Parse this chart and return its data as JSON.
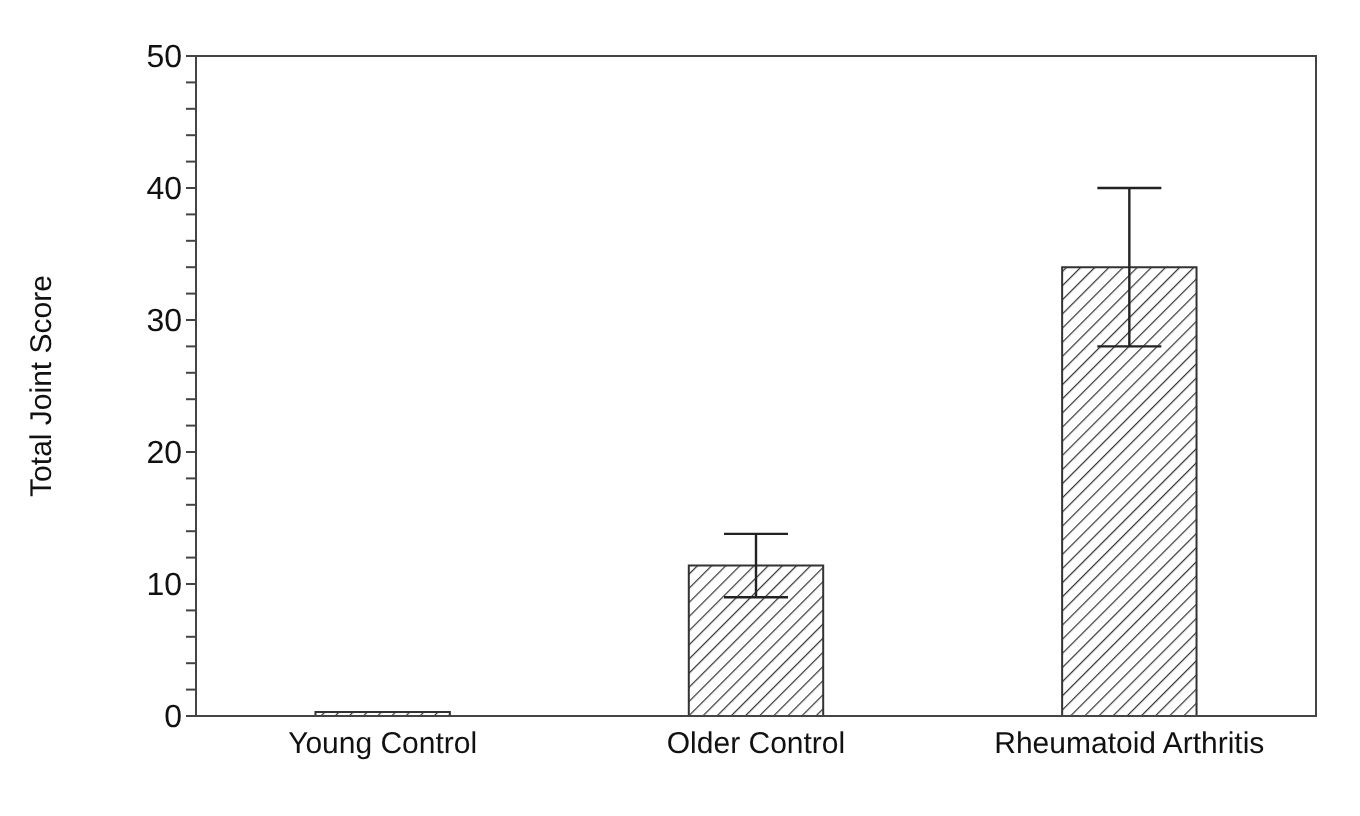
{
  "chart_data": {
    "type": "bar",
    "ylabel": "Total Joint Score",
    "categories": [
      "Young Control",
      "Older Control",
      "Rheumatoid Arthritis"
    ],
    "values": [
      0.3,
      11.4,
      34
    ],
    "errors": [
      null,
      [
        9,
        13.8
      ],
      [
        28,
        40
      ]
    ],
    "color": "#333333",
    "ylim": [
      0,
      50
    ],
    "yticks": [
      0,
      {
        "value": 2,
        "label": null
      },
      {
        "value": 4,
        "label": null
      },
      {
        "value": 6,
        "label": null
      },
      {
        "value": 8,
        "label": null
      },
      10,
      {
        "value": 12,
        "label": null
      },
      {
        "value": 14,
        "label": null
      },
      {
        "value": 16,
        "label": null
      },
      {
        "value": 18,
        "label": null
      },
      20,
      {
        "value": 22,
        "label": null
      },
      {
        "value": 24,
        "label": null
      },
      {
        "value": 26,
        "label": null
      },
      {
        "value": 28,
        "label": null
      },
      30,
      {
        "value": 32,
        "label": null
      },
      {
        "value": 34,
        "label": null
      },
      {
        "value": 36,
        "label": null
      },
      {
        "value": 38,
        "label": null
      },
      40,
      {
        "value": 42,
        "label": null
      },
      {
        "value": 44,
        "label": null
      },
      {
        "value": 46,
        "label": null
      },
      {
        "value": 48,
        "label": null
      },
      50
    ],
    "grid": false,
    "legend": false
  }
}
